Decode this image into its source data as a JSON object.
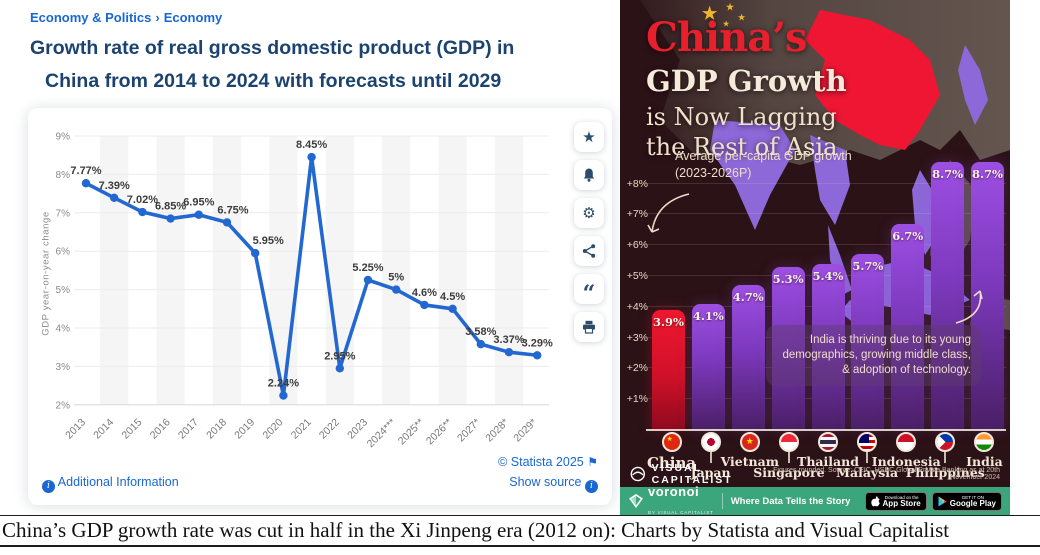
{
  "caption": "China’s GDP growth rate was cut in half in the Xi Jinpeng era (2012 on): Charts by Statista and Visual Capitalist",
  "colors": {
    "statista_blue": "#1a67d2",
    "statista_title": "#1c4370",
    "line_color": "#2368d0",
    "vc_background": "#2b1216",
    "vc_red": "#e8202e",
    "vc_purple": "#8d4fd0",
    "vc_green": "#3ba57b",
    "vc_gold": "#f0b52e",
    "vc_cream": "#efe2cf"
  },
  "statista": {
    "breadcrumb": {
      "section": "Economy & Politics",
      "separator": "›",
      "page": "Economy"
    },
    "title_line1": "Growth rate of real gross domestic product (GDP) in",
    "title_line2": "China from 2014 to 2024 with forecasts until 2029",
    "toolbar_icons": [
      "star-icon",
      "bell-icon",
      "gear-icon",
      "share-icon",
      "quote-icon",
      "printer-icon"
    ],
    "footer": {
      "copyright": "© Statista 2025",
      "copyright_flag_icon": "⚑",
      "additional_info": "Additional Information",
      "show_source": "Show source"
    }
  },
  "infographic": {
    "title_red": "China’s",
    "title_bold": "GDP Growth",
    "title_rest1": "is Now Lagging",
    "title_rest2": "the Rest of Asia",
    "annotation_avg": "Average per-capita GDP growth (2023-2026P)",
    "annotation_india": "India is thriving due to its young demographics, growing middle class, & adoption of technology.",
    "brand": "VISUAL CAPITALIST",
    "source_note": "Figures rounded. Source: CEIC, HSBC Global Private Banking as at 20th November 2024",
    "voronoi": {
      "name": "voronoi",
      "sub": "BY VISUAL CAPITALIST",
      "tagline": "Where Data Tells the Story",
      "appstore_top": "Download on the",
      "appstore_label": "App Store",
      "gplay_top": "GET IT ON",
      "gplay_label": "Google Play"
    }
  },
  "chart_data": [
    {
      "type": "line",
      "title": "Growth rate of real gross domestic product (GDP) in China from 2014 to 2024 with forecasts until 2029",
      "ylabel": "GDP year-on-year change",
      "ylim": [
        2,
        9
      ],
      "yticks": [
        "9%",
        "8%",
        "7%",
        "6%",
        "5%",
        "4%",
        "3%",
        "2%"
      ],
      "grid": true,
      "categories": [
        "2013",
        "2014",
        "2015",
        "2016",
        "2017",
        "2018",
        "2019",
        "2020",
        "2021",
        "2022",
        "2023",
        "2024***",
        "2025**",
        "2026**",
        "2027*",
        "2028*",
        "2029*"
      ],
      "values": [
        7.77,
        7.39,
        7.02,
        6.85,
        6.95,
        6.75,
        5.95,
        2.24,
        8.45,
        2.95,
        5.25,
        5,
        4.6,
        4.5,
        3.58,
        3.37,
        3.29
      ],
      "labels": [
        "7.77%",
        "7.39%",
        "7.02%",
        "6.85%",
        "6.95%",
        "6.75%",
        "5.95%",
        "2.24%",
        "8.45%",
        "2.95%",
        "5.25%",
        "5%",
        "4.6%",
        "4.5%",
        "3.58%",
        "3.37%",
        "3.29%"
      ],
      "line_color": "#2368d0",
      "source_label": "© Statista 2025"
    },
    {
      "type": "bar",
      "title": "China's GDP Growth is Now Lagging the Rest of Asia",
      "subtitle": "Average per-capita GDP growth (2023-2026P)",
      "ylim": [
        0,
        8.7
      ],
      "yticks": [
        "+1%",
        "+2%",
        "+3%",
        "+4%",
        "+5%",
        "+6%",
        "+7%",
        "+8%"
      ],
      "categories": [
        "China",
        "Japan",
        "Vietnam",
        "Singapore",
        "Thailand",
        "Malaysia",
        "Indonesia",
        "Philippines",
        "India"
      ],
      "values": [
        3.9,
        4.1,
        4.7,
        5.3,
        5.4,
        5.7,
        6.7,
        8.7,
        8.7
      ],
      "labels": [
        "3.9%",
        "4.1%",
        "4.7%",
        "5.3%",
        "5.4%",
        "5.7%",
        "6.7%",
        "8.7%",
        "8.7%"
      ],
      "flags": [
        "cn",
        "jp",
        "vn",
        "sg",
        "th",
        "my",
        "id",
        "ph",
        "in"
      ],
      "highlight_index": 0,
      "highlight_color": "#e8192e",
      "bar_color": "#8d4fd0",
      "legend_position": "bottom"
    }
  ]
}
